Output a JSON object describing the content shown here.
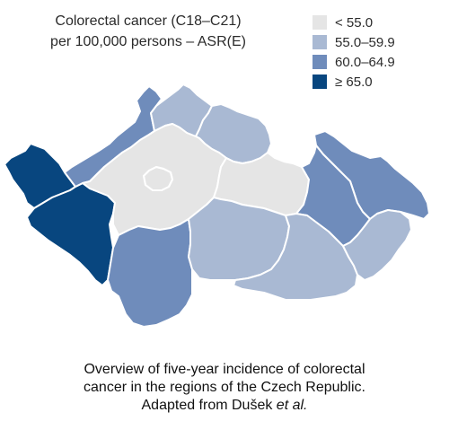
{
  "title": {
    "line1": "Colorectal cancer (C18–C21)",
    "line2": "per 100,000 persons – ASR(E)"
  },
  "legend": [
    {
      "label": "< 55.0",
      "color": "#e5e5e5"
    },
    {
      "label": "55.0–59.9",
      "color": "#a9b9d3"
    },
    {
      "label": "60.0–64.9",
      "color": "#6f8cbb"
    },
    {
      "label": "≥ 65.0",
      "color": "#08467f"
    }
  ],
  "regions": [
    {
      "id": "karlovarsky",
      "class": "≥ 65.0",
      "color": "#08467f"
    },
    {
      "id": "plzensky",
      "class": "≥ 65.0",
      "color": "#08467f"
    },
    {
      "id": "ustecky",
      "class": "60.0–64.9",
      "color": "#6f8cbb"
    },
    {
      "id": "liberecky",
      "class": "55.0–59.9",
      "color": "#a9b9d3"
    },
    {
      "id": "kralovehradecky",
      "class": "55.0–59.9",
      "color": "#a9b9d3"
    },
    {
      "id": "stredocesky",
      "class": "< 55.0",
      "color": "#e5e5e5"
    },
    {
      "id": "praha",
      "class": "< 55.0",
      "color": "#e5e5e5"
    },
    {
      "id": "pardubicky",
      "class": "< 55.0",
      "color": "#e5e5e5"
    },
    {
      "id": "moravskoslezsky",
      "class": "60.0–64.9",
      "color": "#6f8cbb"
    },
    {
      "id": "olomoucky",
      "class": "60.0–64.9",
      "color": "#6f8cbb"
    },
    {
      "id": "jihocesky",
      "class": "60.0–64.9",
      "color": "#6f8cbb"
    },
    {
      "id": "vysocina",
      "class": "55.0–59.9",
      "color": "#a9b9d3"
    },
    {
      "id": "jihomoravsky",
      "class": "55.0–59.9",
      "color": "#a9b9d3"
    },
    {
      "id": "zlinsky",
      "class": "55.0–59.9",
      "color": "#a9b9d3"
    }
  ],
  "caption": {
    "line1": "Overview of five-year incidence of colorectal",
    "line2": "cancer in the regions of the Czech Republic.",
    "line3_prefix": "Adapted from Dušek ",
    "line3_italic": "et al."
  }
}
